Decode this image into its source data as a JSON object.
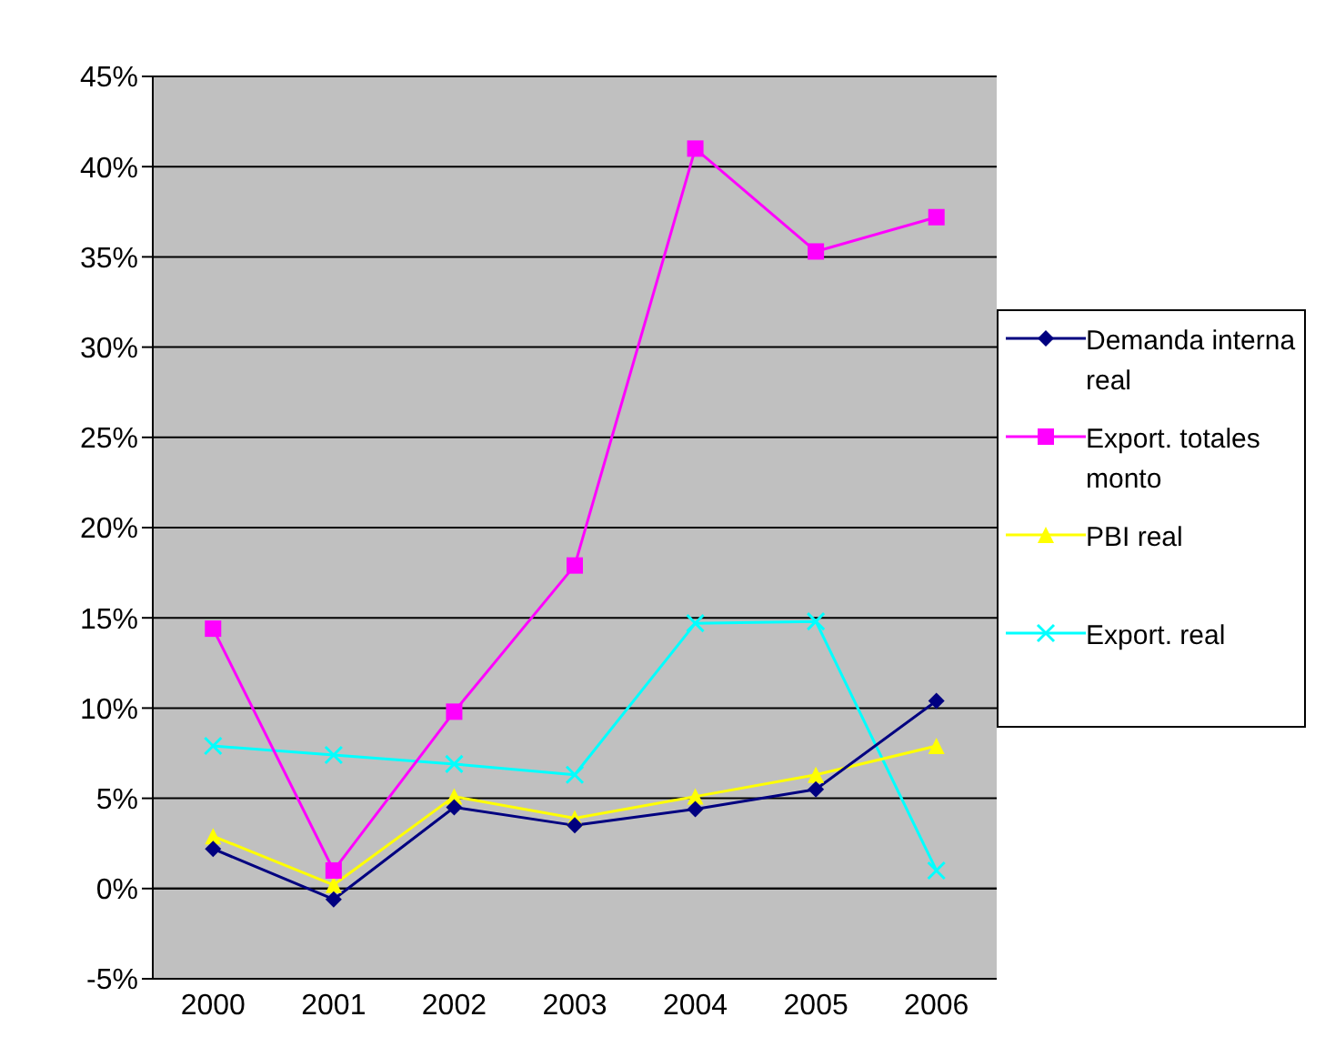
{
  "chart_data": {
    "type": "line",
    "categories": [
      "2000",
      "2001",
      "2002",
      "2003",
      "2004",
      "2005",
      "2006"
    ],
    "series": [
      {
        "name": "Demanda interna real",
        "color": "#000080",
        "marker": "diamond",
        "values": [
          2.2,
          -0.6,
          4.5,
          3.5,
          4.4,
          5.5,
          10.4
        ]
      },
      {
        "name": "Export. totales monto",
        "color": "#ff00ff",
        "marker": "square",
        "values": [
          14.4,
          1.0,
          9.8,
          17.9,
          41.0,
          35.3,
          37.2
        ]
      },
      {
        "name": "PBI real",
        "color": "#ffff00",
        "marker": "triangle",
        "values": [
          2.9,
          0.2,
          5.1,
          3.9,
          5.1,
          6.3,
          7.9
        ]
      },
      {
        "name": "Export. real",
        "color": "#00ffff",
        "marker": "cross",
        "values": [
          7.9,
          7.4,
          6.9,
          6.3,
          14.7,
          14.8,
          1.0
        ]
      }
    ],
    "ylim": [
      -5,
      45
    ],
    "yticks": [
      {
        "value": -5,
        "label": "-5%"
      },
      {
        "value": 0,
        "label": "0%"
      },
      {
        "value": 5,
        "label": "5%"
      },
      {
        "value": 10,
        "label": "10%"
      },
      {
        "value": 15,
        "label": "15%"
      },
      {
        "value": 20,
        "label": "20%"
      },
      {
        "value": 25,
        "label": "25%"
      },
      {
        "value": 30,
        "label": "30%"
      },
      {
        "value": 35,
        "label": "35%"
      },
      {
        "value": 40,
        "label": "40%"
      },
      {
        "value": 45,
        "label": "45%"
      }
    ],
    "grid": "y",
    "legend": "right"
  }
}
